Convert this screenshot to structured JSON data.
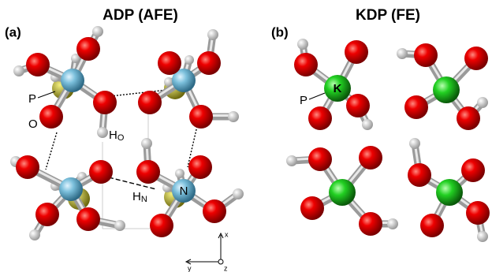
{
  "panels": [
    {
      "tag": "(a)",
      "title": "ADP (AFE)",
      "labels": {
        "p": "P",
        "o": "O",
        "h_o": {
          "main": "H",
          "sub": "O"
        },
        "h_n": {
          "main": "H",
          "sub": "N"
        },
        "n": "N"
      }
    },
    {
      "tag": "(b)",
      "title": "KDP (FE)",
      "labels": {
        "k": "K",
        "p": "P"
      }
    }
  ],
  "axes": {
    "x": "x",
    "y": "y",
    "z": "z"
  }
}
